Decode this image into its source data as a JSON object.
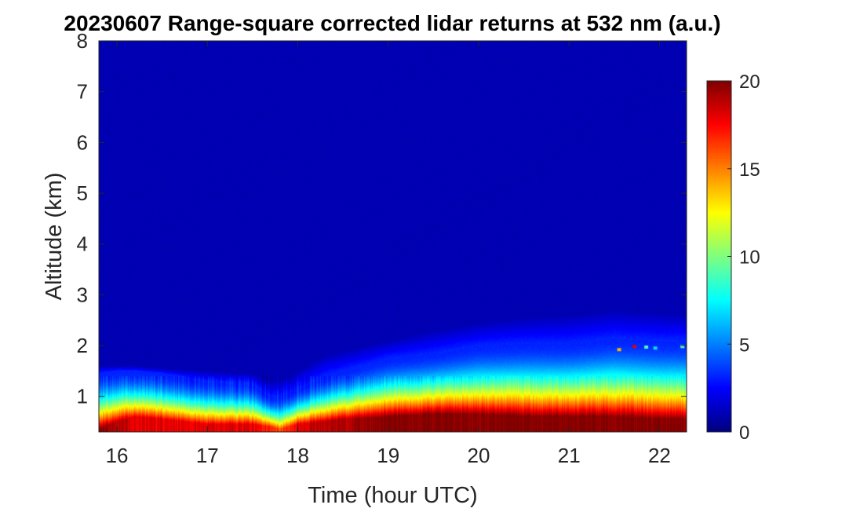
{
  "chart_data": {
    "type": "heatmap",
    "title": "20230607  Range-square corrected lidar returns at 532 nm (a.u.)",
    "xlabel": "Time (hour UTC)",
    "ylabel": "Altitude (km)",
    "xlim": [
      15.8,
      22.3
    ],
    "ylim": [
      0.3,
      8
    ],
    "xticks": [
      16,
      17,
      18,
      19,
      20,
      21,
      22
    ],
    "yticks": [
      1,
      2,
      3,
      4,
      5,
      6,
      7,
      8
    ],
    "colorbar": {
      "min": 0,
      "max": 20,
      "ticks": [
        0,
        5,
        10,
        15,
        20
      ],
      "colormap": "jet"
    },
    "background_value": 1,
    "time_hours": [
      15.8,
      16.0,
      16.2,
      16.5,
      17.0,
      17.5,
      17.7,
      17.8,
      18.0,
      18.3,
      18.5,
      19.0,
      19.5,
      20.0,
      20.5,
      21.0,
      21.5,
      22.0,
      22.3
    ],
    "profiles": {
      "peak_altitude_km": [
        0.35,
        0.5,
        0.6,
        0.55,
        0.45,
        0.45,
        0.4,
        0.35,
        0.45,
        0.5,
        0.55,
        0.6,
        0.65,
        0.65,
        0.6,
        0.6,
        0.6,
        0.55,
        0.55
      ],
      "peak_value": [
        20,
        19,
        18,
        18,
        18,
        18,
        17,
        16,
        18,
        19,
        19,
        20,
        20,
        20,
        20,
        20,
        20,
        20,
        20
      ],
      "layer_top_km": [
        1.45,
        1.5,
        1.5,
        1.45,
        1.3,
        1.25,
        1.0,
        1.0,
        1.15,
        1.4,
        1.5,
        1.75,
        1.85,
        2.0,
        2.05,
        2.05,
        2.15,
        2.1,
        2.1
      ],
      "upper_aerosol_top_km": [
        1.6,
        1.6,
        1.6,
        1.55,
        1.5,
        1.45,
        1.3,
        1.3,
        1.5,
        1.8,
        1.9,
        2.1,
        2.3,
        2.45,
        2.55,
        2.6,
        2.7,
        2.65,
        2.6
      ]
    },
    "cloud_points": [
      {
        "time": 21.55,
        "altitude": 1.92,
        "value": 14
      },
      {
        "time": 21.72,
        "altitude": 1.98,
        "value": 18
      },
      {
        "time": 21.85,
        "altitude": 1.97,
        "value": 9
      },
      {
        "time": 21.95,
        "altitude": 1.95,
        "value": 7
      },
      {
        "time": 22.25,
        "altitude": 1.98,
        "value": 9
      }
    ]
  }
}
